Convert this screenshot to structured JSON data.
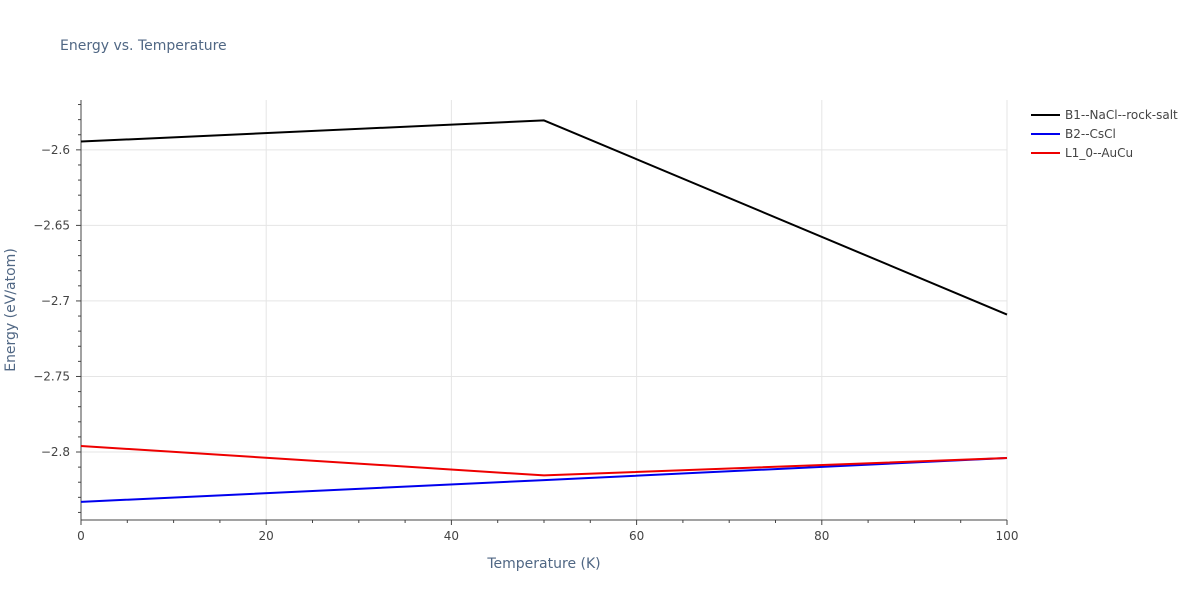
{
  "chart_data": {
    "type": "line",
    "title": "Energy vs. Temperature",
    "xlabel": "Temperature (K)",
    "ylabel": "Energy (eV/atom)",
    "xlim": [
      0,
      100
    ],
    "ylim": [
      -2.845,
      -2.567
    ],
    "x_ticks": [
      0,
      20,
      40,
      60,
      80,
      100
    ],
    "x_tick_labels": [
      "0",
      "20",
      "40",
      "60",
      "80",
      "100"
    ],
    "y_ticks": [
      -2.6,
      -2.65,
      -2.7,
      -2.75,
      -2.8
    ],
    "y_tick_labels": [
      "−2.6",
      "−2.65",
      "−2.7",
      "−2.75",
      "−2.8"
    ],
    "grid": true,
    "legend_position": "top-right",
    "series": [
      {
        "name": "B1--NaCl--rock-salt",
        "color": "#000000",
        "x": [
          0,
          50,
          100
        ],
        "y": [
          -2.5945,
          -2.5805,
          -2.709
        ]
      },
      {
        "name": "B2--CsCl",
        "color": "#0000ee",
        "x": [
          0,
          50,
          100
        ],
        "y": [
          -2.833,
          -2.8186,
          -2.804
        ]
      },
      {
        "name": "L1_0--AuCu",
        "color": "#ee0000",
        "x": [
          0,
          50,
          100
        ],
        "y": [
          -2.796,
          -2.8155,
          -2.804
        ]
      }
    ]
  }
}
